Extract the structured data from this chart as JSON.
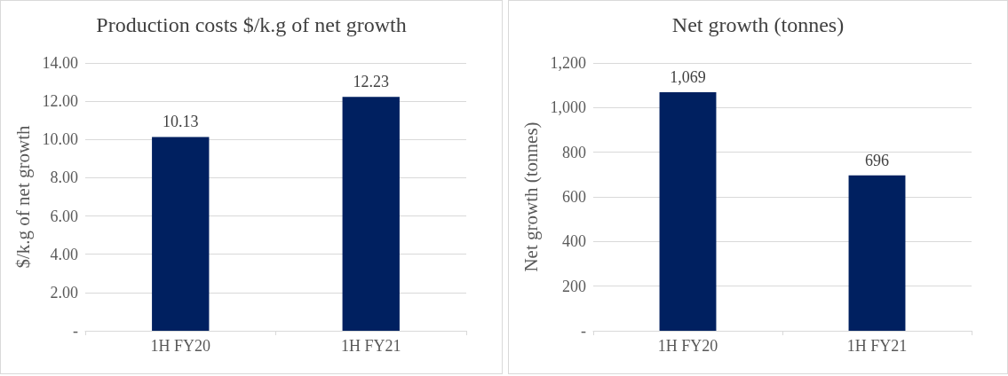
{
  "chart_data": [
    {
      "type": "bar",
      "title": "Production costs $/k.g of net growth",
      "ylabel": "$/k.g of net growth",
      "categories": [
        "1H FY20",
        "1H FY21"
      ],
      "values": [
        10.13,
        12.23
      ],
      "color": "#002060",
      "ylim": [
        0,
        14
      ],
      "yticks": [
        {
          "value": 0,
          "label": "-"
        },
        {
          "value": 2,
          "label": "2.00"
        },
        {
          "value": 4,
          "label": "4.00"
        },
        {
          "value": 6,
          "label": "6.00"
        },
        {
          "value": 8,
          "label": "8.00"
        },
        {
          "value": 10,
          "label": "10.00"
        },
        {
          "value": 12,
          "label": "12.00"
        },
        {
          "value": 14,
          "label": "14.00"
        }
      ],
      "grid": "y",
      "data_labels": true
    },
    {
      "type": "bar",
      "title": "Net growth (tonnes)",
      "ylabel": "Net growth (tonnes)",
      "categories": [
        "1H FY20",
        "1H FY21"
      ],
      "values": [
        1069,
        696
      ],
      "value_labels": [
        "1,069",
        "696"
      ],
      "color": "#002060",
      "ylim": [
        0,
        1200
      ],
      "yticks": [
        {
          "value": 0,
          "label": "-"
        },
        200,
        400,
        600,
        800,
        {
          "value": 1000,
          "label": "1,000"
        },
        {
          "value": 1200,
          "label": "1,200"
        }
      ],
      "grid": "y"
    }
  ]
}
